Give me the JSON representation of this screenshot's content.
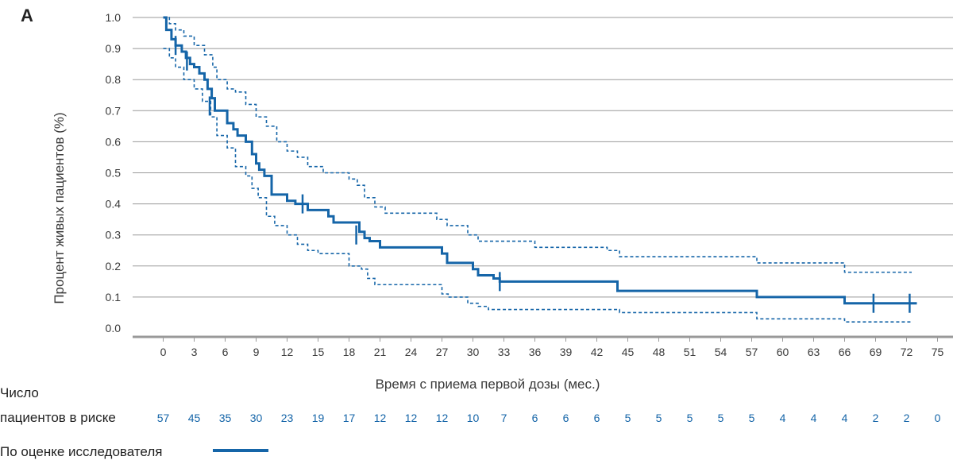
{
  "panel_label": "A",
  "colors": {
    "series": "#1565a8",
    "grid": "#999999",
    "axis": "#999999",
    "risk": "#1565a8"
  },
  "chart_data": {
    "type": "line",
    "title": "",
    "xlabel": "Время с приема первой дозы (мес.)",
    "ylabel": "Процент живых пациентов (%)",
    "xlim": [
      0,
      75
    ],
    "ylim": [
      0,
      1
    ],
    "x_ticks": [
      0,
      3,
      6,
      9,
      12,
      15,
      18,
      21,
      24,
      27,
      30,
      33,
      36,
      39,
      42,
      45,
      48,
      51,
      54,
      57,
      60,
      63,
      66,
      69,
      72,
      75
    ],
    "y_ticks": [
      "0.0",
      "0.1",
      "0.2",
      "0.3",
      "0.4",
      "0.5",
      "0.6",
      "0.7",
      "0.8",
      "0.9",
      "1.0"
    ],
    "grid": "horizontal",
    "series": [
      {
        "name": "По оценке исследователя",
        "style": "solid",
        "x": [
          0,
          0.3,
          0.8,
          1.2,
          1.8,
          2.2,
          2.6,
          3.0,
          3.5,
          4.0,
          4.3,
          4.7,
          5.0,
          6.2,
          6.8,
          7.2,
          8.0,
          8.6,
          9.0,
          9.3,
          9.8,
          10.5,
          12.0,
          12.8,
          14.0,
          16.0,
          16.5,
          19.0,
          19.5,
          20.0,
          21.0,
          27.0,
          27.5,
          30.0,
          30.5,
          32.0,
          32.6,
          44.0,
          57.5,
          66.0,
          73.0
        ],
        "y": [
          1.0,
          0.96,
          0.93,
          0.91,
          0.89,
          0.87,
          0.85,
          0.84,
          0.82,
          0.8,
          0.77,
          0.74,
          0.7,
          0.66,
          0.64,
          0.62,
          0.6,
          0.56,
          0.53,
          0.51,
          0.49,
          0.43,
          0.41,
          0.4,
          0.38,
          0.36,
          0.34,
          0.31,
          0.29,
          0.28,
          0.26,
          0.24,
          0.21,
          0.19,
          0.17,
          0.16,
          0.15,
          0.12,
          0.1,
          0.08,
          0.08
        ]
      },
      {
        "name": "upper-ci",
        "style": "dashed",
        "x": [
          0,
          0.6,
          1.2,
          2.0,
          3.0,
          4.0,
          4.8,
          5.2,
          6.2,
          7.0,
          8.0,
          9.0,
          10.0,
          11.0,
          12.0,
          13.0,
          14.0,
          15.5,
          17.0,
          18.0,
          18.8,
          19.5,
          20.5,
          21.5,
          26.5,
          27.5,
          29.5,
          30.5,
          31.5,
          36.0,
          43.0,
          44.2,
          57.5,
          66.0,
          72.5
        ],
        "y": [
          1.0,
          0.98,
          0.96,
          0.94,
          0.91,
          0.88,
          0.84,
          0.8,
          0.77,
          0.76,
          0.72,
          0.68,
          0.65,
          0.6,
          0.57,
          0.55,
          0.52,
          0.5,
          0.5,
          0.48,
          0.46,
          0.42,
          0.39,
          0.37,
          0.35,
          0.33,
          0.3,
          0.28,
          0.28,
          0.26,
          0.25,
          0.23,
          0.21,
          0.18,
          0.18
        ]
      },
      {
        "name": "lower-ci",
        "style": "dashed",
        "x": [
          0,
          0.6,
          1.2,
          2.0,
          3.0,
          3.8,
          4.6,
          5.2,
          6.2,
          7.0,
          8.0,
          8.6,
          9.2,
          10.0,
          10.8,
          12.0,
          13.0,
          14.0,
          15.0,
          17.0,
          18.0,
          19.2,
          19.8,
          20.5,
          21.5,
          27.0,
          27.6,
          29.5,
          30.5,
          31.5,
          43.5,
          44.2,
          57.5,
          66.0,
          72.5
        ],
        "y": [
          0.9,
          0.87,
          0.84,
          0.8,
          0.77,
          0.73,
          0.68,
          0.62,
          0.58,
          0.52,
          0.49,
          0.45,
          0.42,
          0.36,
          0.33,
          0.3,
          0.27,
          0.25,
          0.24,
          0.24,
          0.2,
          0.19,
          0.16,
          0.14,
          0.14,
          0.11,
          0.1,
          0.08,
          0.07,
          0.06,
          0.06,
          0.05,
          0.03,
          0.02,
          0.02
        ]
      }
    ],
    "censor_marks": [
      {
        "x": 1.2,
        "y": 0.91
      },
      {
        "x": 2.3,
        "y": 0.86
      },
      {
        "x": 4.5,
        "y": 0.715
      },
      {
        "x": 13.5,
        "y": 0.4
      },
      {
        "x": 18.7,
        "y": 0.3
      },
      {
        "x": 32.6,
        "y": 0.15
      },
      {
        "x": 68.8,
        "y": 0.08
      },
      {
        "x": 72.3,
        "y": 0.08
      }
    ]
  },
  "risk_table": {
    "label_line1": "Число",
    "label_line2": "пациентов в риске",
    "values": [
      "57",
      "45",
      "35",
      "30",
      "23",
      "19",
      "17",
      "12",
      "12",
      "12",
      "10",
      "7",
      "6",
      "6",
      "6",
      "5",
      "5",
      "5",
      "5",
      "5",
      "4",
      "4",
      "4",
      "2",
      "2",
      "0"
    ]
  },
  "legend": {
    "label": "По оценке исследователя"
  }
}
